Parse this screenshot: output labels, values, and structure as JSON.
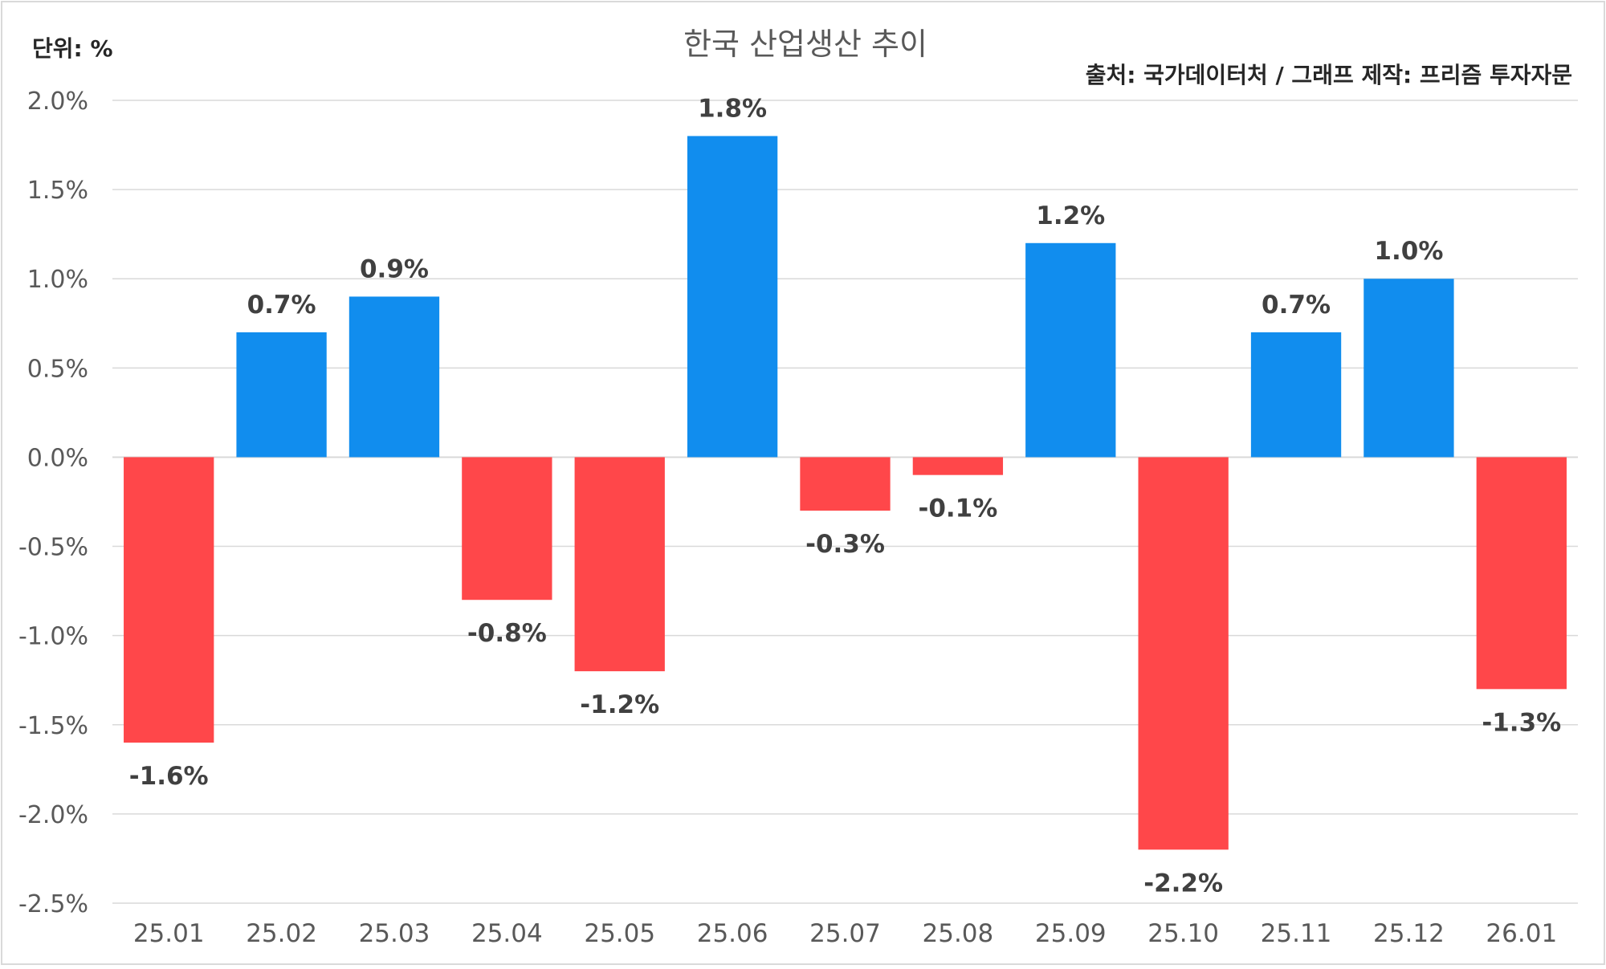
{
  "chart_data": {
    "type": "bar",
    "title": "한국 산업생산 추이",
    "unit_label": "단위: %",
    "source_label": "출처: 국가데이터처 / 그래프 제작: 프리즘 투자자문",
    "categories": [
      "25.01",
      "25.02",
      "25.03",
      "25.04",
      "25.05",
      "25.06",
      "25.07",
      "25.08",
      "25.09",
      "25.10",
      "25.11",
      "25.12",
      "26.01"
    ],
    "values": [
      -1.6,
      0.7,
      0.9,
      -0.8,
      -1.2,
      1.8,
      -0.3,
      -0.1,
      1.2,
      -2.2,
      0.7,
      1.0,
      -1.3
    ],
    "data_labels": [
      "-1.6%",
      "0.7%",
      "0.9%",
      "-0.8%",
      "-1.2%",
      "1.8%",
      "-0.3%",
      "-0.1%",
      "1.2%",
      "-2.2%",
      "0.7%",
      "1.0%",
      "-1.3%"
    ],
    "ylim": [
      -2.5,
      2.0
    ],
    "yticks": [
      2.0,
      1.5,
      1.0,
      0.5,
      0.0,
      -0.5,
      -1.0,
      -1.5,
      -2.0,
      -2.5
    ],
    "ytick_labels": [
      "2.0%",
      "1.5%",
      "1.0%",
      "0.5%",
      "0.0%",
      "-0.5%",
      "-1.0%",
      "-1.5%",
      "-2.0%",
      "-2.5%"
    ],
    "grid": true,
    "legend": "none",
    "colors": {
      "positive": "#118DEE",
      "negative": "#FF474A"
    }
  }
}
